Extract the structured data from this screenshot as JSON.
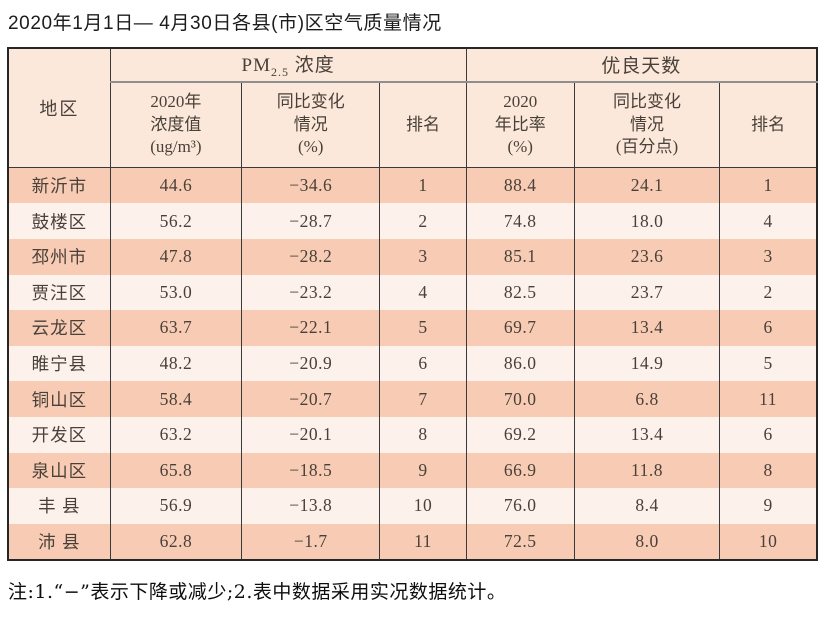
{
  "page": {
    "title": "2020年1月1日— 4月30日各县(市)区空气质量情况",
    "note": "注:1.“−”表示下降或减少;2.表中数据采用实况数据统计。"
  },
  "colors": {
    "row_stripe_dark": "#f8ccb4",
    "row_stripe_light": "#fdf2eb",
    "header_background": "#fbe8da",
    "border_dark": "#3a3a3a",
    "group_divider": "#8f8f8f",
    "cell_text": "#494139"
  },
  "table": {
    "region_header": "地区",
    "groups": {
      "pm": {
        "prefix": "PM",
        "sub": "2.5",
        "suffix": " 浓度"
      },
      "good_days": {
        "label": "优良天数"
      }
    },
    "subheaders": [
      "2020年\n浓度值\n(ug/m³)",
      "同比变化\n情况\n(%)",
      "排名",
      "2020\n年比率\n(%)",
      "同比变化\n情况\n(百分点)",
      "排名"
    ],
    "rows": [
      [
        "新沂市",
        "44.6",
        "−34.6",
        "1",
        "88.4",
        "24.1",
        "1"
      ],
      [
        "鼓楼区",
        "56.2",
        "−28.7",
        "2",
        "74.8",
        "18.0",
        "4"
      ],
      [
        "邳州市",
        "47.8",
        "−28.2",
        "3",
        "85.1",
        "23.6",
        "3"
      ],
      [
        "贾汪区",
        "53.0",
        "−23.2",
        "4",
        "82.5",
        "23.7",
        "2"
      ],
      [
        "云龙区",
        "63.7",
        "−22.1",
        "5",
        "69.7",
        "13.4",
        "6"
      ],
      [
        "睢宁县",
        "48.2",
        "−20.9",
        "6",
        "86.0",
        "14.9",
        "5"
      ],
      [
        "铜山区",
        "58.4",
        "−20.7",
        "7",
        "70.0",
        "6.8",
        "11"
      ],
      [
        "开发区",
        "63.2",
        "−20.1",
        "8",
        "69.2",
        "13.4",
        "6"
      ],
      [
        "泉山区",
        "65.8",
        "−18.5",
        "9",
        "66.9",
        "11.8",
        "8"
      ],
      [
        "丰 县",
        "56.9",
        "−13.8",
        "10",
        "76.0",
        "8.4",
        "9"
      ],
      [
        "沛 县",
        "62.8",
        "−1.7",
        "11",
        "72.5",
        "8.0",
        "10"
      ]
    ]
  }
}
